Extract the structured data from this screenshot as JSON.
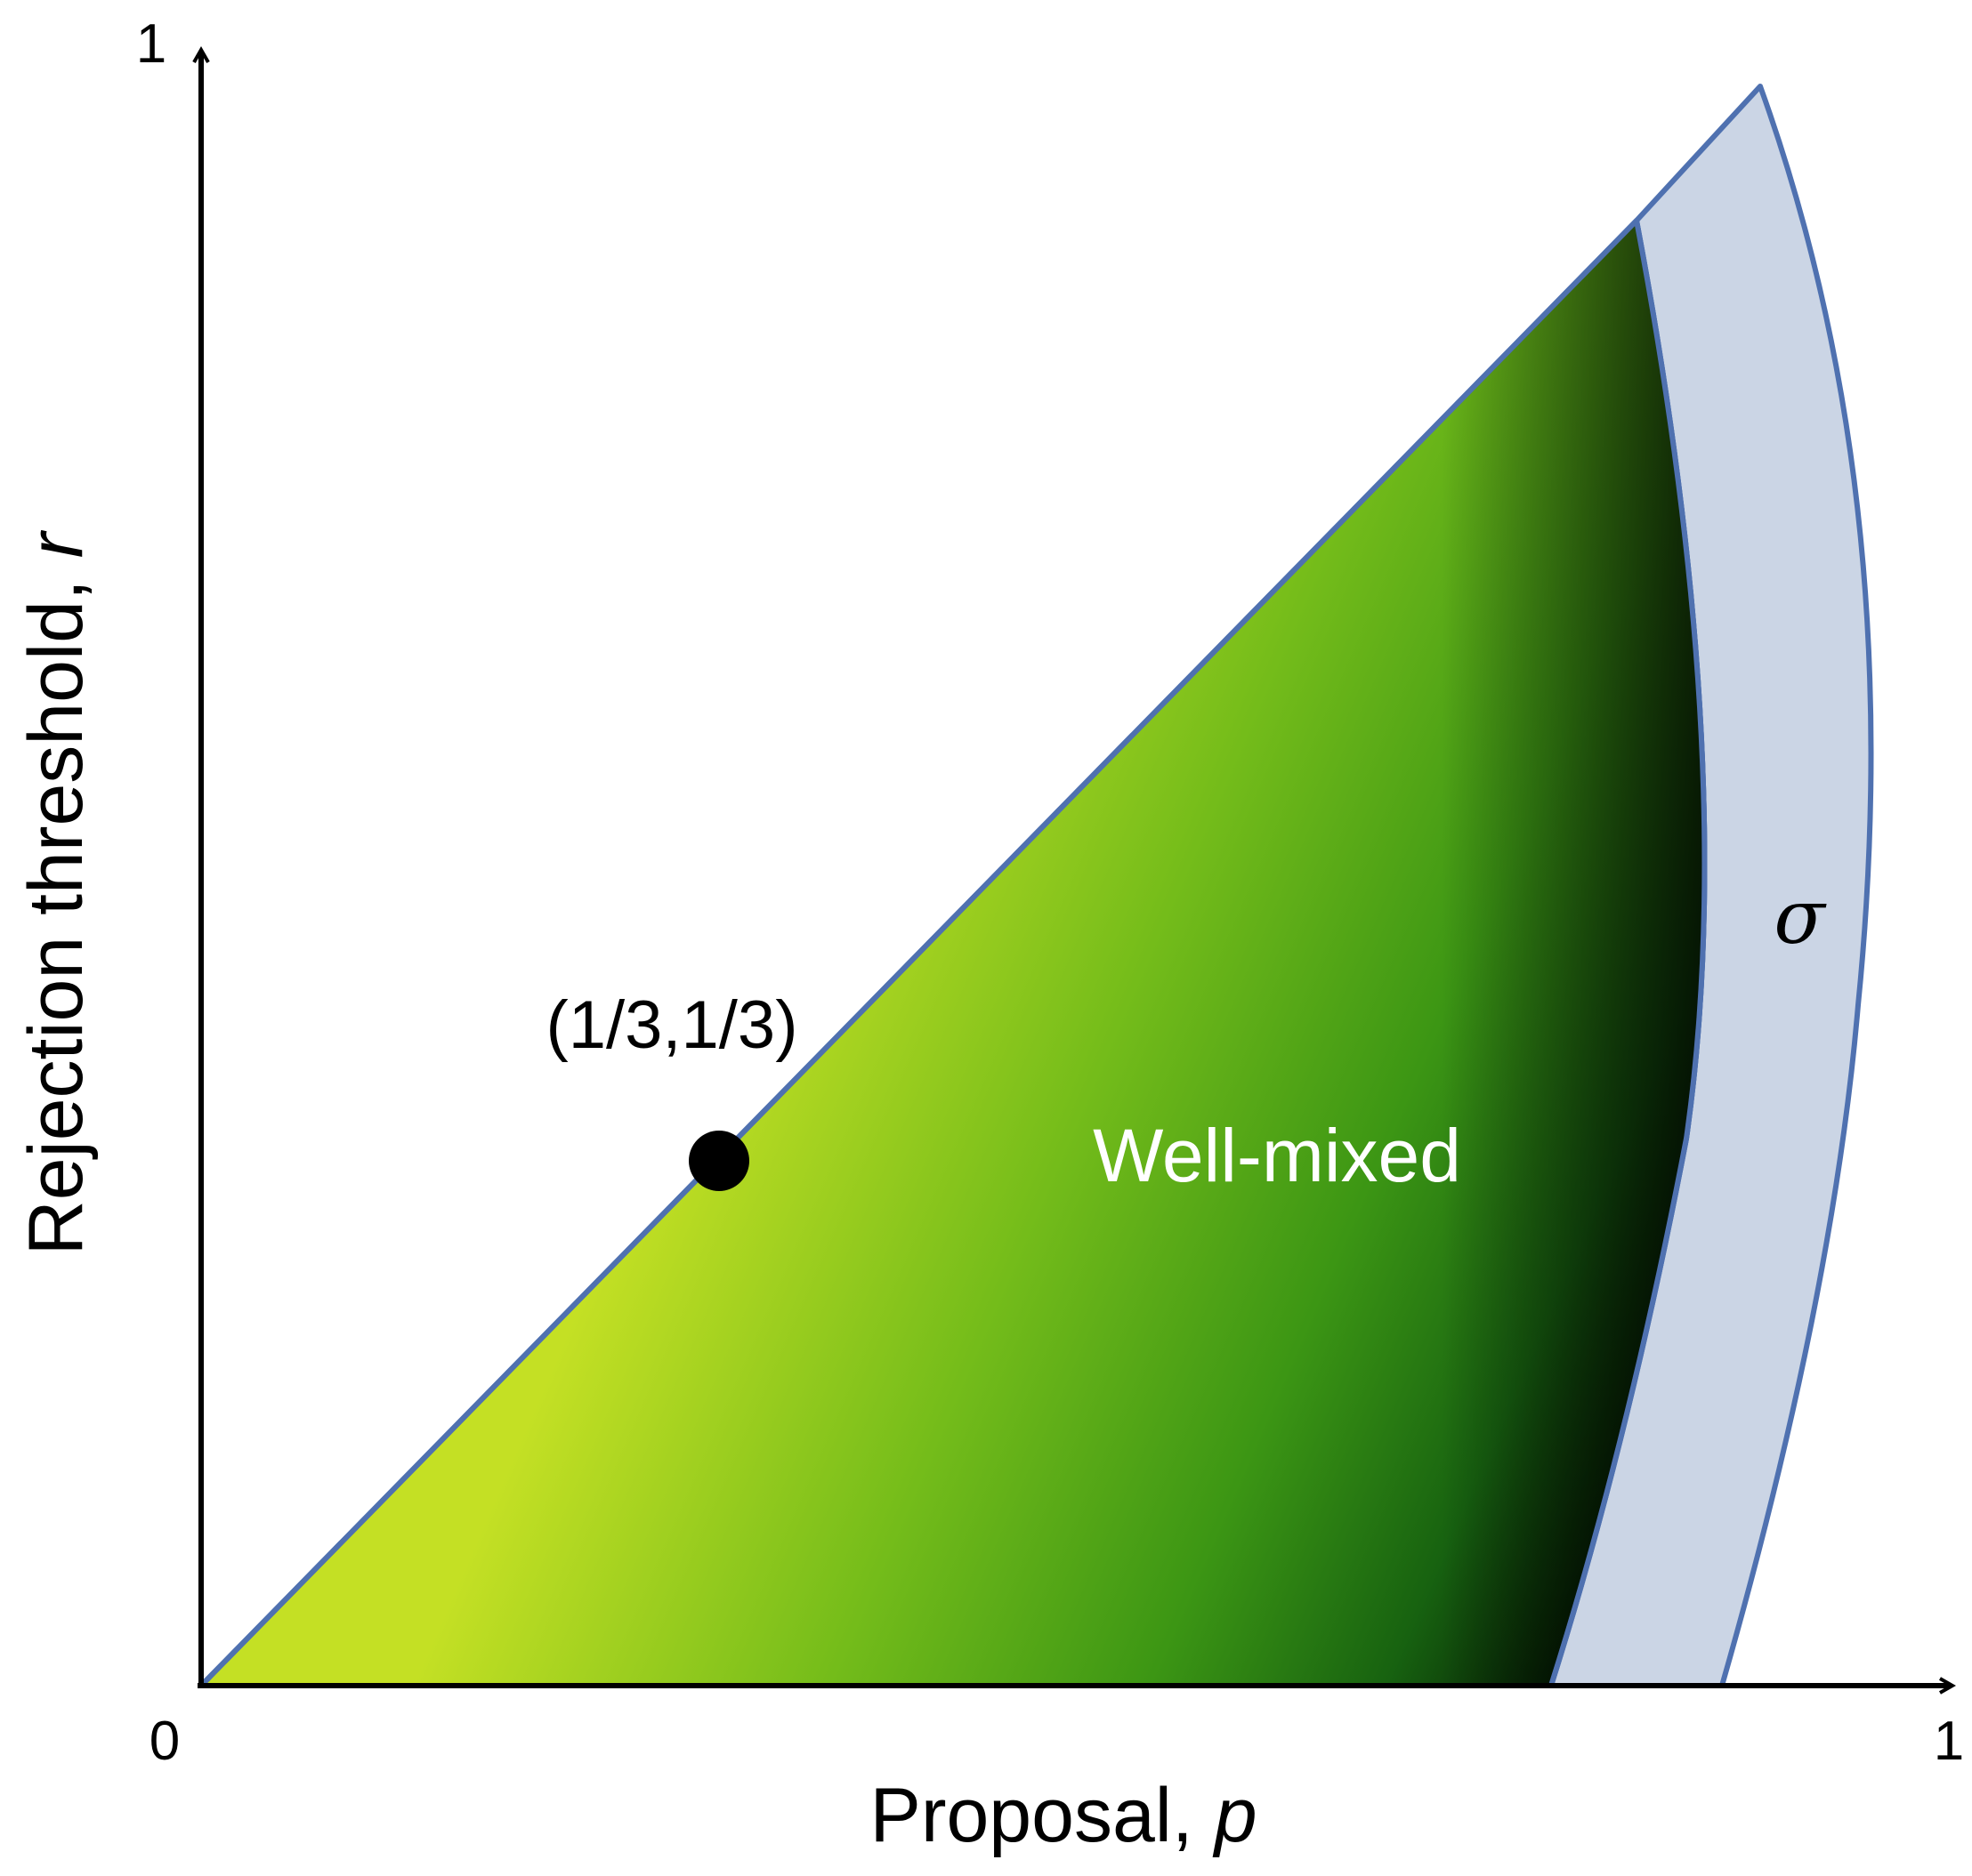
{
  "axes": {
    "x_title": "Proposal, ",
    "x_var": "p",
    "y_title": "Rejection threshold, ",
    "y_var": "r",
    "origin_label": "0",
    "x_max_label": "1",
    "y_max_label": "1"
  },
  "point": {
    "label": "(1/3,1/3)",
    "p": 0.333,
    "r": 0.333
  },
  "regions": {
    "well_mixed_label": "Well-mixed",
    "band_label": "σ"
  },
  "colors": {
    "gradient_light": "#c4e024",
    "gradient_mid": "#4ea818",
    "gradient_deep": "#1d6e10",
    "gradient_dark": "#000a00",
    "band_fill": "#cbd5e5",
    "outline": "#4f71b0",
    "axis": "#000000"
  }
}
